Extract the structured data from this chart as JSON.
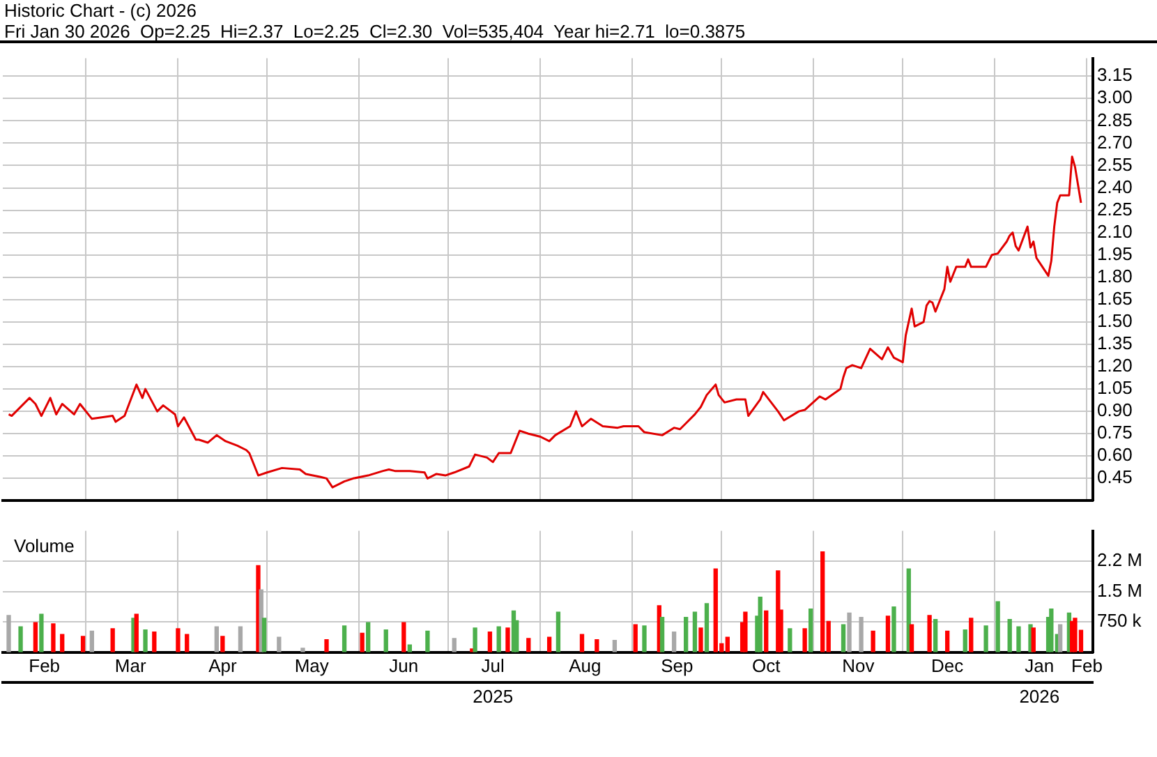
{
  "chart_data": [
    {
      "type": "line",
      "title": "Historic Chart - (c) 2026",
      "subtitle": "Fri Jan 30 2026  Op=2.25  Hi=2.37  Lo=2.25  Cl=2.30  Vol=535,404  Year hi=2.71  lo=0.3875",
      "color": "#e00000",
      "x": [
        "2025-02-03",
        "2025-02-04",
        "2025-02-10",
        "2025-02-12",
        "2025-02-14",
        "2025-02-17",
        "2025-02-19",
        "2025-02-21",
        "2025-02-25",
        "2025-02-27",
        "2025-03-03",
        "2025-03-10",
        "2025-03-11",
        "2025-03-14",
        "2025-03-18",
        "2025-03-20",
        "2025-03-21",
        "2025-03-25",
        "2025-03-27",
        "2025-03-31",
        "2025-04-01",
        "2025-04-03",
        "2025-04-07",
        "2025-04-08",
        "2025-04-11",
        "2025-04-14",
        "2025-04-17",
        "2025-04-21",
        "2025-04-24",
        "2025-04-25",
        "2025-04-28",
        "2025-05-01",
        "2025-05-06",
        "2025-05-12",
        "2025-05-14",
        "2025-05-19",
        "2025-05-21",
        "2025-05-23",
        "2025-05-27",
        "2025-05-30",
        "2025-06-04",
        "2025-06-09",
        "2025-06-11",
        "2025-06-13",
        "2025-06-18",
        "2025-06-23",
        "2025-06-24",
        "2025-06-27",
        "2025-06-30",
        "2025-07-03",
        "2025-07-08",
        "2025-07-10",
        "2025-07-14",
        "2025-07-16",
        "2025-07-18",
        "2025-07-22",
        "2025-07-24",
        "2025-07-25",
        "2025-07-28",
        "2025-08-01",
        "2025-08-04",
        "2025-08-06",
        "2025-08-11",
        "2025-08-13",
        "2025-08-15",
        "2025-08-18",
        "2025-08-22",
        "2025-08-27",
        "2025-08-29",
        "2025-09-03",
        "2025-09-05",
        "2025-09-11",
        "2025-09-15",
        "2025-09-17",
        "2025-09-19",
        "2025-09-22",
        "2025-09-24",
        "2025-09-26",
        "2025-09-29",
        "2025-09-30",
        "2025-10-02",
        "2025-10-06",
        "2025-10-09",
        "2025-10-10",
        "2025-10-14",
        "2025-10-15",
        "2025-10-20",
        "2025-10-22",
        "2025-10-27",
        "2025-10-29",
        "2025-11-03",
        "2025-11-05",
        "2025-11-10",
        "2025-11-11",
        "2025-11-12",
        "2025-11-14",
        "2025-11-17",
        "2025-11-20",
        "2025-11-24",
        "2025-11-26",
        "2025-11-28",
        "2025-12-01",
        "2025-12-02",
        "2025-12-04",
        "2025-12-05",
        "2025-12-08",
        "2025-12-09",
        "2025-12-10",
        "2025-12-11",
        "2025-12-12",
        "2025-12-15",
        "2025-12-16",
        "2025-12-17",
        "2025-12-18",
        "2025-12-19",
        "2025-12-22",
        "2025-12-23",
        "2025-12-24",
        "2025-12-29",
        "2025-12-30",
        "2025-12-31",
        "2026-01-02",
        "2026-01-05",
        "2026-01-06",
        "2026-01-07",
        "2026-01-08",
        "2026-01-09",
        "2026-01-12",
        "2026-01-13",
        "2026-01-14",
        "2026-01-15",
        "2026-01-16",
        "2026-01-19",
        "2026-01-20",
        "2026-01-21",
        "2026-01-22",
        "2026-01-23",
        "2026-01-26",
        "2026-01-27",
        "2026-01-28",
        "2026-01-29",
        "2026-01-30"
      ],
      "values": [
        0.88,
        0.87,
        0.99,
        0.95,
        0.87,
        0.99,
        0.88,
        0.95,
        0.88,
        0.95,
        0.85,
        0.87,
        0.83,
        0.87,
        1.08,
        0.99,
        1.05,
        0.9,
        0.94,
        0.88,
        0.8,
        0.86,
        0.71,
        0.71,
        0.69,
        0.74,
        0.7,
        0.67,
        0.64,
        0.62,
        0.47,
        0.49,
        0.52,
        0.51,
        0.48,
        0.46,
        0.45,
        0.39,
        0.43,
        0.45,
        0.47,
        0.5,
        0.51,
        0.5,
        0.5,
        0.49,
        0.45,
        0.48,
        0.47,
        0.49,
        0.53,
        0.61,
        0.59,
        0.56,
        0.62,
        0.62,
        0.72,
        0.77,
        0.75,
        0.73,
        0.7,
        0.74,
        0.8,
        0.9,
        0.8,
        0.85,
        0.8,
        0.79,
        0.8,
        0.8,
        0.76,
        0.74,
        0.79,
        0.78,
        0.82,
        0.88,
        0.93,
        1.01,
        1.08,
        1.01,
        0.96,
        0.98,
        0.98,
        0.87,
        0.98,
        1.03,
        0.9,
        0.84,
        0.9,
        0.91,
        1.0,
        0.98,
        1.05,
        1.13,
        1.19,
        1.21,
        1.19,
        1.32,
        1.25,
        1.33,
        1.26,
        1.23,
        1.41,
        1.59,
        1.47,
        1.5,
        1.61,
        1.64,
        1.63,
        1.57,
        1.72,
        1.87,
        1.77,
        1.82,
        1.87,
        1.87,
        1.92,
        1.87,
        1.87,
        1.91,
        1.95,
        1.96,
        2.04,
        2.08,
        2.1,
        2.01,
        1.98,
        2.14,
        2.0,
        2.04,
        1.93,
        1.9,
        1.81,
        1.91,
        2.14,
        2.3,
        2.35,
        2.35,
        2.61,
        2.54,
        2.42,
        2.3
      ],
      "xlim": [
        "2025-02-01",
        "2026-02-03"
      ],
      "xticks": [
        {
          "value": "2025-03-01",
          "label": null
        },
        {
          "value": "2025-04-01",
          "label": null
        },
        {
          "value": "2025-05-01",
          "label": null
        },
        {
          "value": "2025-06-01",
          "label": null
        },
        {
          "value": "2025-07-01",
          "label": null
        },
        {
          "value": "2025-08-01",
          "label": null
        },
        {
          "value": "2025-09-01",
          "label": null
        },
        {
          "value": "2025-10-01",
          "label": null
        },
        {
          "value": "2025-11-01",
          "label": null
        },
        {
          "value": "2025-12-01",
          "label": null
        },
        {
          "value": "2026-01-01",
          "label": null
        },
        {
          "value": "2026-02-01",
          "label": null
        }
      ],
      "ylim": [
        0.3,
        3.27
      ],
      "yticks": [
        0.45,
        {
          "value": 0.6,
          "label": "0.60"
        },
        0.75,
        {
          "value": 0.9,
          "label": "0.90"
        },
        1.05,
        {
          "value": 1.2,
          "label": "1.20"
        },
        1.35,
        {
          "value": 1.5,
          "label": "1.50"
        },
        1.65,
        {
          "value": 1.8,
          "label": "1.80"
        },
        1.95,
        {
          "value": 2.1,
          "label": "2.10"
        },
        2.25,
        {
          "value": 2.4,
          "label": "2.40"
        },
        2.55,
        {
          "value": 2.7,
          "label": "2.70"
        },
        2.85,
        {
          "value": 3.0,
          "label": "3.00"
        },
        3.15
      ],
      "grid": true,
      "tick_labels": "y"
    },
    {
      "type": "bar",
      "title": "Volume",
      "x": [
        "2025-02-03",
        "2025-02-07",
        "2025-02-12",
        "2025-02-14",
        "2025-02-18",
        "2025-02-21",
        "2025-02-28",
        "2025-03-03",
        "2025-03-10",
        "2025-03-17",
        "2025-03-18",
        "2025-03-21",
        "2025-03-24",
        "2025-04-01",
        "2025-04-04",
        "2025-04-14",
        "2025-04-16",
        "2025-04-22",
        "2025-04-28",
        "2025-04-29",
        "2025-04-30",
        "2025-05-05",
        "2025-05-13",
        "2025-05-21",
        "2025-05-27",
        "2025-06-02",
        "2025-06-04",
        "2025-06-10",
        "2025-06-16",
        "2025-06-18",
        "2025-06-24",
        "2025-07-03",
        "2025-07-09",
        "2025-07-10",
        "2025-07-15",
        "2025-07-18",
        "2025-07-21",
        "2025-07-23",
        "2025-07-24",
        "2025-07-28",
        "2025-08-04",
        "2025-08-07",
        "2025-08-15",
        "2025-08-20",
        "2025-08-26",
        "2025-09-02",
        "2025-09-05",
        "2025-09-10",
        "2025-09-11",
        "2025-09-15",
        "2025-09-19",
        "2025-09-22",
        "2025-09-24",
        "2025-09-26",
        "2025-09-29",
        "2025-10-01",
        "2025-10-03",
        "2025-10-08",
        "2025-10-09",
        "2025-10-13",
        "2025-10-14",
        "2025-10-16",
        "2025-10-20",
        "2025-10-21",
        "2025-10-24",
        "2025-10-29",
        "2025-10-31",
        "2025-11-04",
        "2025-11-06",
        "2025-11-11",
        "2025-11-13",
        "2025-11-17",
        "2025-11-21",
        "2025-11-26",
        "2025-11-28",
        "2025-12-03",
        "2025-12-04",
        "2025-12-10",
        "2025-12-12",
        "2025-12-16",
        "2025-12-22",
        "2025-12-24",
        "2025-12-29",
        "2026-01-02",
        "2026-01-06",
        "2026-01-09",
        "2026-01-13",
        "2026-01-14",
        "2026-01-19",
        "2026-01-20",
        "2026-01-22",
        "2026-01-23",
        "2026-01-26",
        "2026-01-27",
        "2026-01-28",
        "2026-01-30"
      ],
      "values": [
        910000,
        630000,
        730000,
        940000,
        700000,
        440000,
        390000,
        520000,
        580000,
        840000,
        940000,
        550000,
        500000,
        580000,
        440000,
        630000,
        390000,
        630000,
        2140000,
        1540000,
        840000,
        370000,
        100000,
        310000,
        650000,
        470000,
        730000,
        550000,
        730000,
        180000,
        520000,
        340000,
        80000,
        600000,
        500000,
        630000,
        600000,
        1020000,
        780000,
        340000,
        370000,
        990000,
        440000,
        310000,
        290000,
        680000,
        650000,
        1150000,
        860000,
        500000,
        860000,
        990000,
        600000,
        1200000,
        2060000,
        210000,
        370000,
        730000,
        990000,
        890000,
        1360000,
        1020000,
        2010000,
        1040000,
        580000,
        580000,
        1070000,
        2480000,
        760000,
        680000,
        970000,
        860000,
        520000,
        890000,
        1120000,
        2060000,
        680000,
        910000,
        810000,
        520000,
        550000,
        840000,
        650000,
        1250000,
        810000,
        630000,
        680000,
        600000,
        860000,
        1070000,
        440000,
        680000,
        970000,
        760000,
        840000,
        540000
      ],
      "colors": [
        "#a8a8a8",
        "#4cb04c",
        "#ff0000",
        "#4cb04c",
        "#ff0000",
        "#ff0000",
        "#ff0000",
        "#a8a8a8",
        "#ff0000",
        "#4cb04c",
        "#ff0000",
        "#4cb04c",
        "#ff0000",
        "#ff0000",
        "#ff0000",
        "#a8a8a8",
        "#ff0000",
        "#a8a8a8",
        "#ff0000",
        "#a8a8a8",
        "#4cb04c",
        "#a8a8a8",
        "#a8a8a8",
        "#ff0000",
        "#4cb04c",
        "#ff0000",
        "#4cb04c",
        "#4cb04c",
        "#ff0000",
        "#4cb04c",
        "#4cb04c",
        "#a8a8a8",
        "#ff0000",
        "#4cb04c",
        "#ff0000",
        "#4cb04c",
        "#ff0000",
        "#4cb04c",
        "#4cb04c",
        "#ff0000",
        "#ff0000",
        "#4cb04c",
        "#ff0000",
        "#ff0000",
        "#a8a8a8",
        "#ff0000",
        "#4cb04c",
        "#ff0000",
        "#4cb04c",
        "#a8a8a8",
        "#4cb04c",
        "#4cb04c",
        "#ff0000",
        "#4cb04c",
        "#ff0000",
        "#ff0000",
        "#ff0000",
        "#ff0000",
        "#ff0000",
        "#4cb04c",
        "#4cb04c",
        "#ff0000",
        "#ff0000",
        "#ff0000",
        "#4cb04c",
        "#ff0000",
        "#4cb04c",
        "#ff0000",
        "#ff0000",
        "#4cb04c",
        "#a8a8a8",
        "#a8a8a8",
        "#ff0000",
        "#ff0000",
        "#4cb04c",
        "#4cb04c",
        "#ff0000",
        "#ff0000",
        "#4cb04c",
        "#ff0000",
        "#4cb04c",
        "#ff0000",
        "#4cb04c",
        "#4cb04c",
        "#4cb04c",
        "#4cb04c",
        "#4cb04c",
        "#ff0000",
        "#4cb04c",
        "#4cb04c",
        "#4cb04c",
        "#a8a8a8",
        "#4cb04c",
        "#ff0000",
        "#ff0000",
        "#ff0000"
      ],
      "xlim": [
        "2025-02-01",
        "2026-02-03"
      ],
      "xticks": [
        {
          "value": "2025-02-15",
          "label": "Feb"
        },
        {
          "value": "2025-03-01",
          "label": null
        },
        {
          "value": "2025-03-16",
          "label": "Mar"
        },
        {
          "value": "2025-04-01",
          "label": null
        },
        {
          "value": "2025-04-16",
          "label": "Apr"
        },
        {
          "value": "2025-05-01",
          "label": null
        },
        {
          "value": "2025-05-16",
          "label": "May"
        },
        {
          "value": "2025-06-01",
          "label": null
        },
        {
          "value": "2025-06-16",
          "label": "Jun"
        },
        {
          "value": "2025-07-01",
          "label": null
        },
        {
          "value": "2025-07-16",
          "label": "Jul"
        },
        {
          "value": "2025-08-01",
          "label": null
        },
        {
          "value": "2025-08-16",
          "label": "Aug"
        },
        {
          "value": "2025-09-01",
          "label": null
        },
        {
          "value": "2025-09-16",
          "label": "Sep"
        },
        {
          "value": "2025-10-01",
          "label": null
        },
        {
          "value": "2025-10-16",
          "label": "Oct"
        },
        {
          "value": "2025-11-01",
          "label": null
        },
        {
          "value": "2025-11-16",
          "label": "Nov"
        },
        {
          "value": "2025-12-01",
          "label": null
        },
        {
          "value": "2025-12-16",
          "label": "Dec"
        },
        {
          "value": "2026-01-01",
          "label": null
        },
        {
          "value": "2026-01-16",
          "label": "Jan"
        },
        {
          "value": "2026-02-01",
          "label": "Feb"
        }
      ],
      "x2lim": [
        "2025-02-01",
        "2026-02-03"
      ],
      "x2ticks": [
        {
          "value": "2025-07-16",
          "label": "2025"
        },
        {
          "value": "2026-01-16",
          "label": "2026"
        }
      ],
      "ylim": [
        0,
        3000000
      ],
      "yticks": [
        {
          "value": 750000,
          "label": "750 k"
        },
        {
          "value": 1500000,
          "label": "1.5 M"
        },
        {
          "value": 2250000,
          "label": "2.2 M"
        }
      ],
      "grid": true
    }
  ]
}
